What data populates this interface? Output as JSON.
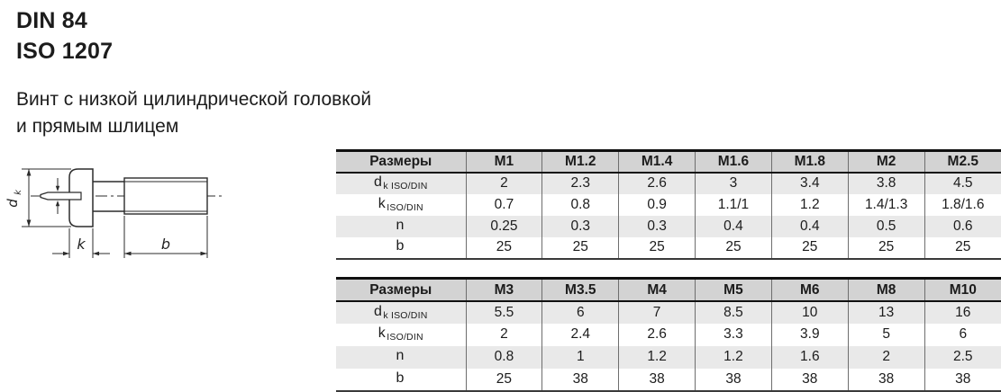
{
  "header": {
    "standard1": "DIN 84",
    "standard2": "ISO 1207",
    "description_line1": "Винт с низкой цилиндрической головкой",
    "description_line2": "и прямым шлицем"
  },
  "drawing": {
    "label_d_main": "d",
    "label_d_sub": "k",
    "label_k": "k",
    "label_b": "b"
  },
  "colors": {
    "table_header_bg": "#d3d3d3",
    "table_alt_row_bg": "#e9e9e9",
    "table_border_dark": "#101010",
    "table_border_thin": "#6e6e6e",
    "text": "#1c1c1c"
  },
  "tables": [
    {
      "name": "sizes-m1-to-m2.5",
      "columns": [
        "Размеры",
        "M1",
        "M1.2",
        "M1.4",
        "M1.6",
        "M1.8",
        "M2",
        "M2.5"
      ],
      "rows": [
        {
          "label_main": "d",
          "label_sub": "k ISO/DIN",
          "values": [
            "2",
            "2.3",
            "2.6",
            "3",
            "3.4",
            "3.8",
            "4.5"
          ]
        },
        {
          "label_main": "k",
          "label_sub": "ISO/DIN",
          "values": [
            "0.7",
            "0.8",
            "0.9",
            "1.1/1",
            "1.2",
            "1.4/1.3",
            "1.8/1.6"
          ]
        },
        {
          "label_main": "n",
          "label_sub": "",
          "values": [
            "0.25",
            "0.3",
            "0.3",
            "0.4",
            "0.4",
            "0.5",
            "0.6"
          ]
        },
        {
          "label_main": "b",
          "label_sub": "",
          "values": [
            "25",
            "25",
            "25",
            "25",
            "25",
            "25",
            "25"
          ]
        }
      ]
    },
    {
      "name": "sizes-m3-to-m10",
      "columns": [
        "Размеры",
        "M3",
        "M3.5",
        "M4",
        "M5",
        "M6",
        "M8",
        "M10"
      ],
      "rows": [
        {
          "label_main": "d",
          "label_sub": "k ISO/DIN",
          "values": [
            "5.5",
            "6",
            "7",
            "8.5",
            "10",
            "13",
            "16"
          ]
        },
        {
          "label_main": "k",
          "label_sub": "ISO/DIN",
          "values": [
            "2",
            "2.4",
            "2.6",
            "3.3",
            "3.9",
            "5",
            "6"
          ]
        },
        {
          "label_main": "n",
          "label_sub": "",
          "values": [
            "0.8",
            "1",
            "1.2",
            "1.2",
            "1.6",
            "2",
            "2.5"
          ]
        },
        {
          "label_main": "b",
          "label_sub": "",
          "values": [
            "25",
            "38",
            "38",
            "38",
            "38",
            "38",
            "38"
          ]
        }
      ]
    }
  ]
}
